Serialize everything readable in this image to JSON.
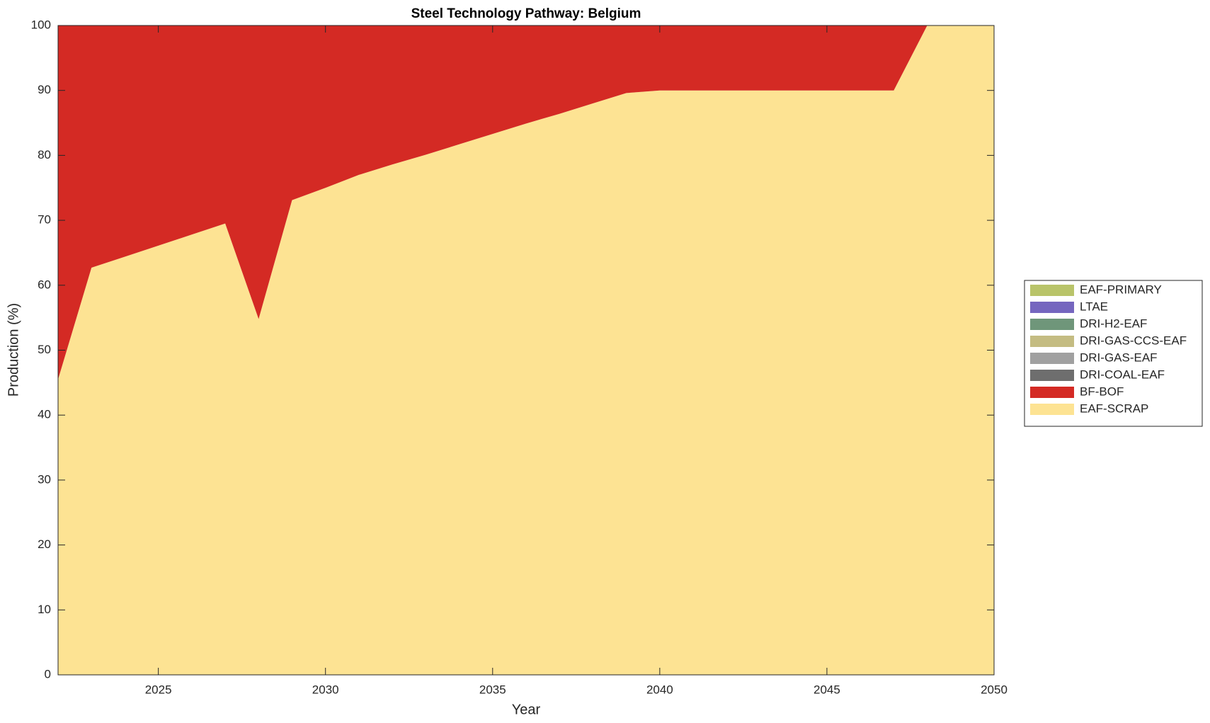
{
  "chart_data": {
    "type": "stacked_area",
    "title": "Steel Technology Pathway: Belgium",
    "x_label": "Year",
    "y_label": "Production (%)",
    "x": [
      2022,
      2023,
      2024,
      2025,
      2026,
      2027,
      2028,
      2029,
      2030,
      2031,
      2032,
      2033,
      2034,
      2035,
      2036,
      2037,
      2038,
      2039,
      2040,
      2041,
      2042,
      2043,
      2044,
      2045,
      2046,
      2047,
      2048,
      2049,
      2050
    ],
    "series": [
      {
        "name": "EAF-SCRAP",
        "color": "#fde393",
        "values": [
          45.5,
          62.7,
          64.4,
          66.1,
          67.8,
          69.5,
          54.8,
          73.1,
          75,
          77,
          78.6,
          80.1,
          81.7,
          83.3,
          84.9,
          86.4,
          88,
          89.6,
          90,
          90,
          90,
          90,
          90,
          90,
          90,
          90,
          100,
          100,
          100
        ]
      },
      {
        "name": "BF-BOF",
        "color": "#d42a24",
        "values": [
          54.5,
          37.3,
          35.6,
          33.9,
          32.2,
          30.5,
          45.2,
          26.9,
          25,
          23,
          21.4,
          19.9,
          18.3,
          16.7,
          15.1,
          13.6,
          12,
          10.4,
          10,
          10,
          10,
          10,
          10,
          10,
          10,
          10,
          0,
          0,
          0
        ]
      },
      {
        "name": "DRI-COAL-EAF",
        "color": "#6e6e6e",
        "values": [
          0,
          0,
          0,
          0,
          0,
          0,
          0,
          0,
          0,
          0,
          0,
          0,
          0,
          0,
          0,
          0,
          0,
          0,
          0,
          0,
          0,
          0,
          0,
          0,
          0,
          0,
          0,
          0,
          0
        ]
      },
      {
        "name": "DRI-GAS-EAF",
        "color": "#a0a0a0",
        "values": [
          0,
          0,
          0,
          0,
          0,
          0,
          0,
          0,
          0,
          0,
          0,
          0,
          0,
          0,
          0,
          0,
          0,
          0,
          0,
          0,
          0,
          0,
          0,
          0,
          0,
          0,
          0,
          0,
          0
        ]
      },
      {
        "name": "DRI-GAS-CCS-EAF",
        "color": "#c4bc82",
        "values": [
          0,
          0,
          0,
          0,
          0,
          0,
          0,
          0,
          0,
          0,
          0,
          0,
          0,
          0,
          0,
          0,
          0,
          0,
          0,
          0,
          0,
          0,
          0,
          0,
          0,
          0,
          0,
          0,
          0
        ]
      },
      {
        "name": "DRI-H2-EAF",
        "color": "#6f967a",
        "values": [
          0,
          0,
          0,
          0,
          0,
          0,
          0,
          0,
          0,
          0,
          0,
          0,
          0,
          0,
          0,
          0,
          0,
          0,
          0,
          0,
          0,
          0,
          0,
          0,
          0,
          0,
          0,
          0,
          0
        ]
      },
      {
        "name": "LTAE",
        "color": "#7566bf",
        "values": [
          0,
          0,
          0,
          0,
          0,
          0,
          0,
          0,
          0,
          0,
          0,
          0,
          0,
          0,
          0,
          0,
          0,
          0,
          0,
          0,
          0,
          0,
          0,
          0,
          0,
          0,
          0,
          0,
          0
        ]
      },
      {
        "name": "EAF-PRIMARY",
        "color": "#b9c46a",
        "values": [
          0,
          0,
          0,
          0,
          0,
          0,
          0,
          0,
          0,
          0,
          0,
          0,
          0,
          0,
          0,
          0,
          0,
          0,
          0,
          0,
          0,
          0,
          0,
          0,
          0,
          0,
          0,
          0,
          0
        ]
      }
    ],
    "xlim": [
      2022,
      2050
    ],
    "xticks": [
      2025,
      2030,
      2035,
      2040,
      2045,
      2050
    ],
    "ylim": [
      0,
      100
    ],
    "yticks": [
      0,
      10,
      20,
      30,
      40,
      50,
      60,
      70,
      80,
      90,
      100
    ],
    "legend": "right",
    "grid": false
  }
}
